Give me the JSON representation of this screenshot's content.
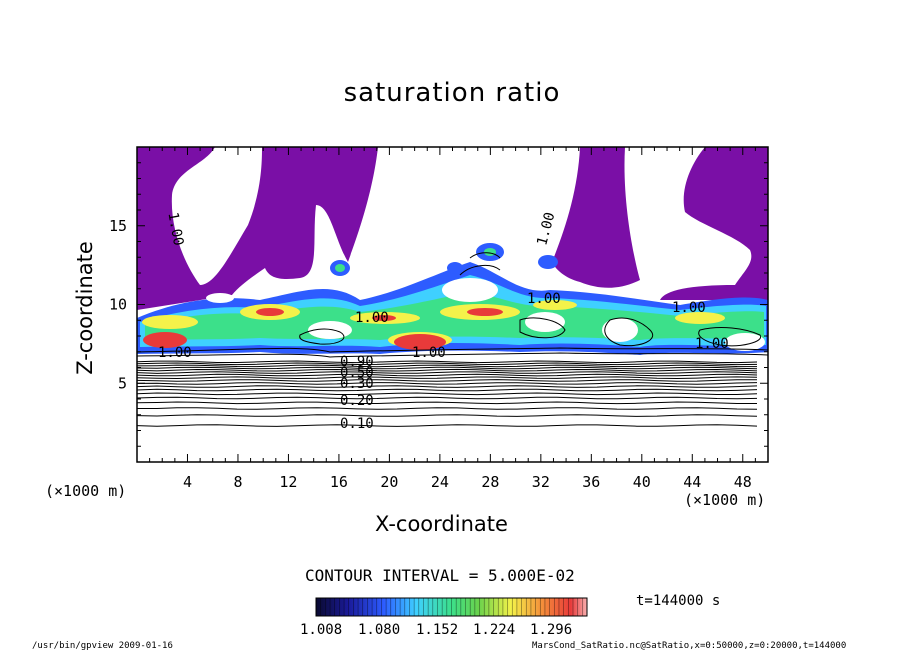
{
  "chart_data": {
    "type": "heatmap",
    "title": "saturation ratio",
    "xlabel": "X-coordinate",
    "ylabel": "Z-coordinate",
    "x_unit": "(×1000 m)",
    "y_unit": "(×1000 m)",
    "xlim": [
      0,
      50
    ],
    "ylim": [
      0,
      20
    ],
    "x_ticks": [
      "4",
      "8",
      "12",
      "16",
      "20",
      "24",
      "28",
      "32",
      "36",
      "40",
      "44",
      "48"
    ],
    "y_ticks": [
      "5",
      "10",
      "15"
    ],
    "contour_interval": "CONTOUR INTERVAL = 5.000E-02",
    "contour_labels": [
      "1.00",
      "1.00",
      "1.00",
      "1.00",
      "1.00",
      "1.00",
      "1.00",
      "1.00",
      "0.90",
      "0.50",
      "0.30",
      "0.20",
      "0.10"
    ],
    "colorbar_ticks": [
      "1.008",
      "1.080",
      "1.152",
      "1.224",
      "1.296"
    ],
    "colorbar_range": [
      1.008,
      1.296
    ],
    "colorscale": [
      "#0a0a30",
      "#1a1a9a",
      "#2d5cff",
      "#3fd0ff",
      "#3ce08a",
      "#6ad24c",
      "#f4f24a",
      "#f48a3a",
      "#e83a3a",
      "#f7b0b0"
    ],
    "saturated_region_color": "#7a0fa6",
    "time_label": "t=144000 s"
  },
  "footer": {
    "left": "/usr/bin/gpview  2009-01-16",
    "right": "MarsCond_SatRatio.nc@SatRatio,x=0:50000,z=0:20000,t=144000"
  }
}
